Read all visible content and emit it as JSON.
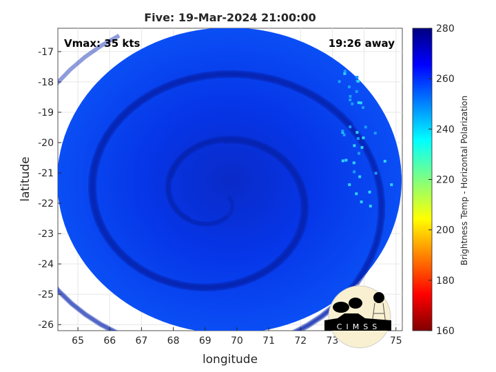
{
  "chart_data": {
    "type": "heatmap",
    "title": "Five: 19-Mar-2024 21:00:00",
    "xlabel": "longitude",
    "ylabel": "latitude",
    "xlim": [
      64.37,
      75.2
    ],
    "ylim": [
      -26.2,
      -16.23
    ],
    "xticks": [
      65,
      66,
      67,
      68,
      69,
      70,
      71,
      72,
      73,
      74,
      75
    ],
    "yticks": [
      -17,
      -18,
      -19,
      -20,
      -21,
      -22,
      -23,
      -24,
      -25,
      -26
    ],
    "grid": true,
    "annotations": {
      "vmax": "Vmax: 35 kts",
      "distance": "19:26 away"
    },
    "colorbar": {
      "label": "Brightness Temp - Horizontal Polarization",
      "range": [
        160,
        280
      ],
      "ticks": [
        160,
        180,
        200,
        220,
        240,
        260,
        280
      ],
      "colormap": "jet"
    },
    "swath": {
      "center_lon": 69.6,
      "center_lat": -21.4,
      "typical_value": 265,
      "min_visible_value": 240,
      "circulation_center_lon": 69.4,
      "circulation_center_lat": -21.8
    }
  },
  "logo": {
    "text": "CIMSS"
  }
}
